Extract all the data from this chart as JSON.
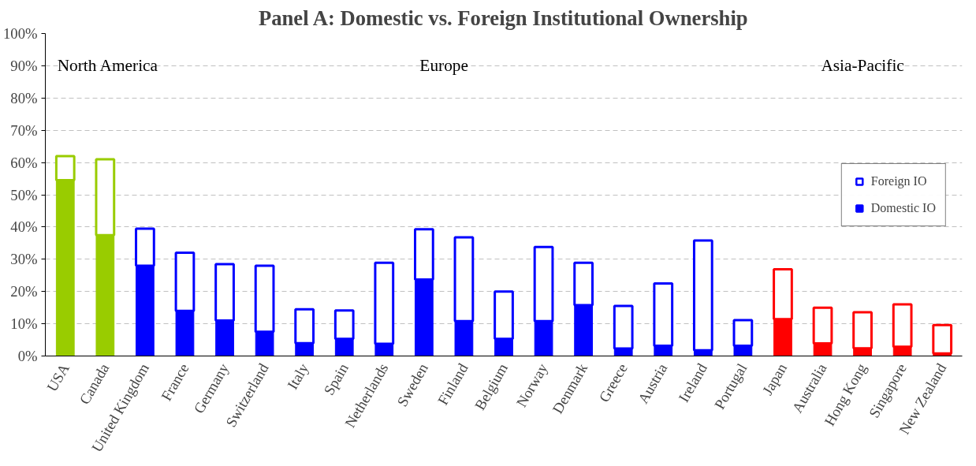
{
  "chart_data": {
    "type": "bar",
    "stacked": true,
    "title": "Panel A: Domestic vs. Foreign Institutional Ownership",
    "categories": [
      "USA",
      "Canada",
      "United Kingdom",
      "France",
      "Germany",
      "Switzerland",
      "Italy",
      "Spain",
      "Netherlands",
      "Sweden",
      "Finland",
      "Belgium",
      "Norway",
      "Denmark",
      "Greece",
      "Austria",
      "Ireland",
      "Portugal",
      "Japan",
      "Australia",
      "Hong Kong",
      "Singapore",
      "New Zealand"
    ],
    "series": [
      {
        "name": "Domestic IO",
        "color": "#0000ff",
        "colors": [
          "#99cc00",
          "#99cc00",
          "#0000ff",
          "#0000ff",
          "#0000ff",
          "#0000ff",
          "#0000ff",
          "#0000ff",
          "#0000ff",
          "#0000ff",
          "#0000ff",
          "#0000ff",
          "#0000ff",
          "#0000ff",
          "#0000ff",
          "#0000ff",
          "#0000ff",
          "#0000ff",
          "#ff0000",
          "#ff0000",
          "#ff0000",
          "#ff0000",
          "#ff0000"
        ],
        "values": [
          54.5,
          37.5,
          28,
          14,
          11,
          7.5,
          4,
          5.3,
          3.8,
          23.7,
          10.8,
          5.3,
          10.8,
          15.8,
          2.3,
          3.2,
          1.8,
          3.2,
          11.4,
          3.9,
          2.4,
          2.9,
          0.8
        ]
      },
      {
        "name": "Foreign IO",
        "color": "#0000ff",
        "colors": [
          "#99cc00",
          "#99cc00",
          "#0000ff",
          "#0000ff",
          "#0000ff",
          "#0000ff",
          "#0000ff",
          "#0000ff",
          "#0000ff",
          "#0000ff",
          "#0000ff",
          "#0000ff",
          "#0000ff",
          "#0000ff",
          "#0000ff",
          "#0000ff",
          "#0000ff",
          "#0000ff",
          "#ff0000",
          "#ff0000",
          "#ff0000",
          "#ff0000",
          "#ff0000"
        ],
        "values": [
          7.5,
          23.5,
          11.5,
          18,
          17.5,
          20.5,
          10.5,
          8.8,
          25.1,
          15.6,
          26,
          14.7,
          23,
          13.1,
          13.2,
          19.3,
          34,
          7.9,
          15.5,
          11.1,
          11.2,
          13.1,
          8.8
        ]
      }
    ],
    "ylim": [
      0,
      100
    ],
    "yticks": [
      {
        "value": 0,
        "label": "0%"
      },
      {
        "value": 10,
        "label": "10%"
      },
      {
        "value": 20,
        "label": "20%"
      },
      {
        "value": 30,
        "label": "30%"
      },
      {
        "value": 40,
        "label": "40%"
      },
      {
        "value": 50,
        "label": "50%"
      },
      {
        "value": 60,
        "label": "60%"
      },
      {
        "value": 70,
        "label": "70%"
      },
      {
        "value": 80,
        "label": "80%"
      },
      {
        "value": 90,
        "label": "90%"
      },
      {
        "value": 100,
        "label": "100%"
      }
    ],
    "grid": "y",
    "legend": "right",
    "annotations": [
      "North America",
      "Europe",
      "Asia-Pacific"
    ]
  }
}
